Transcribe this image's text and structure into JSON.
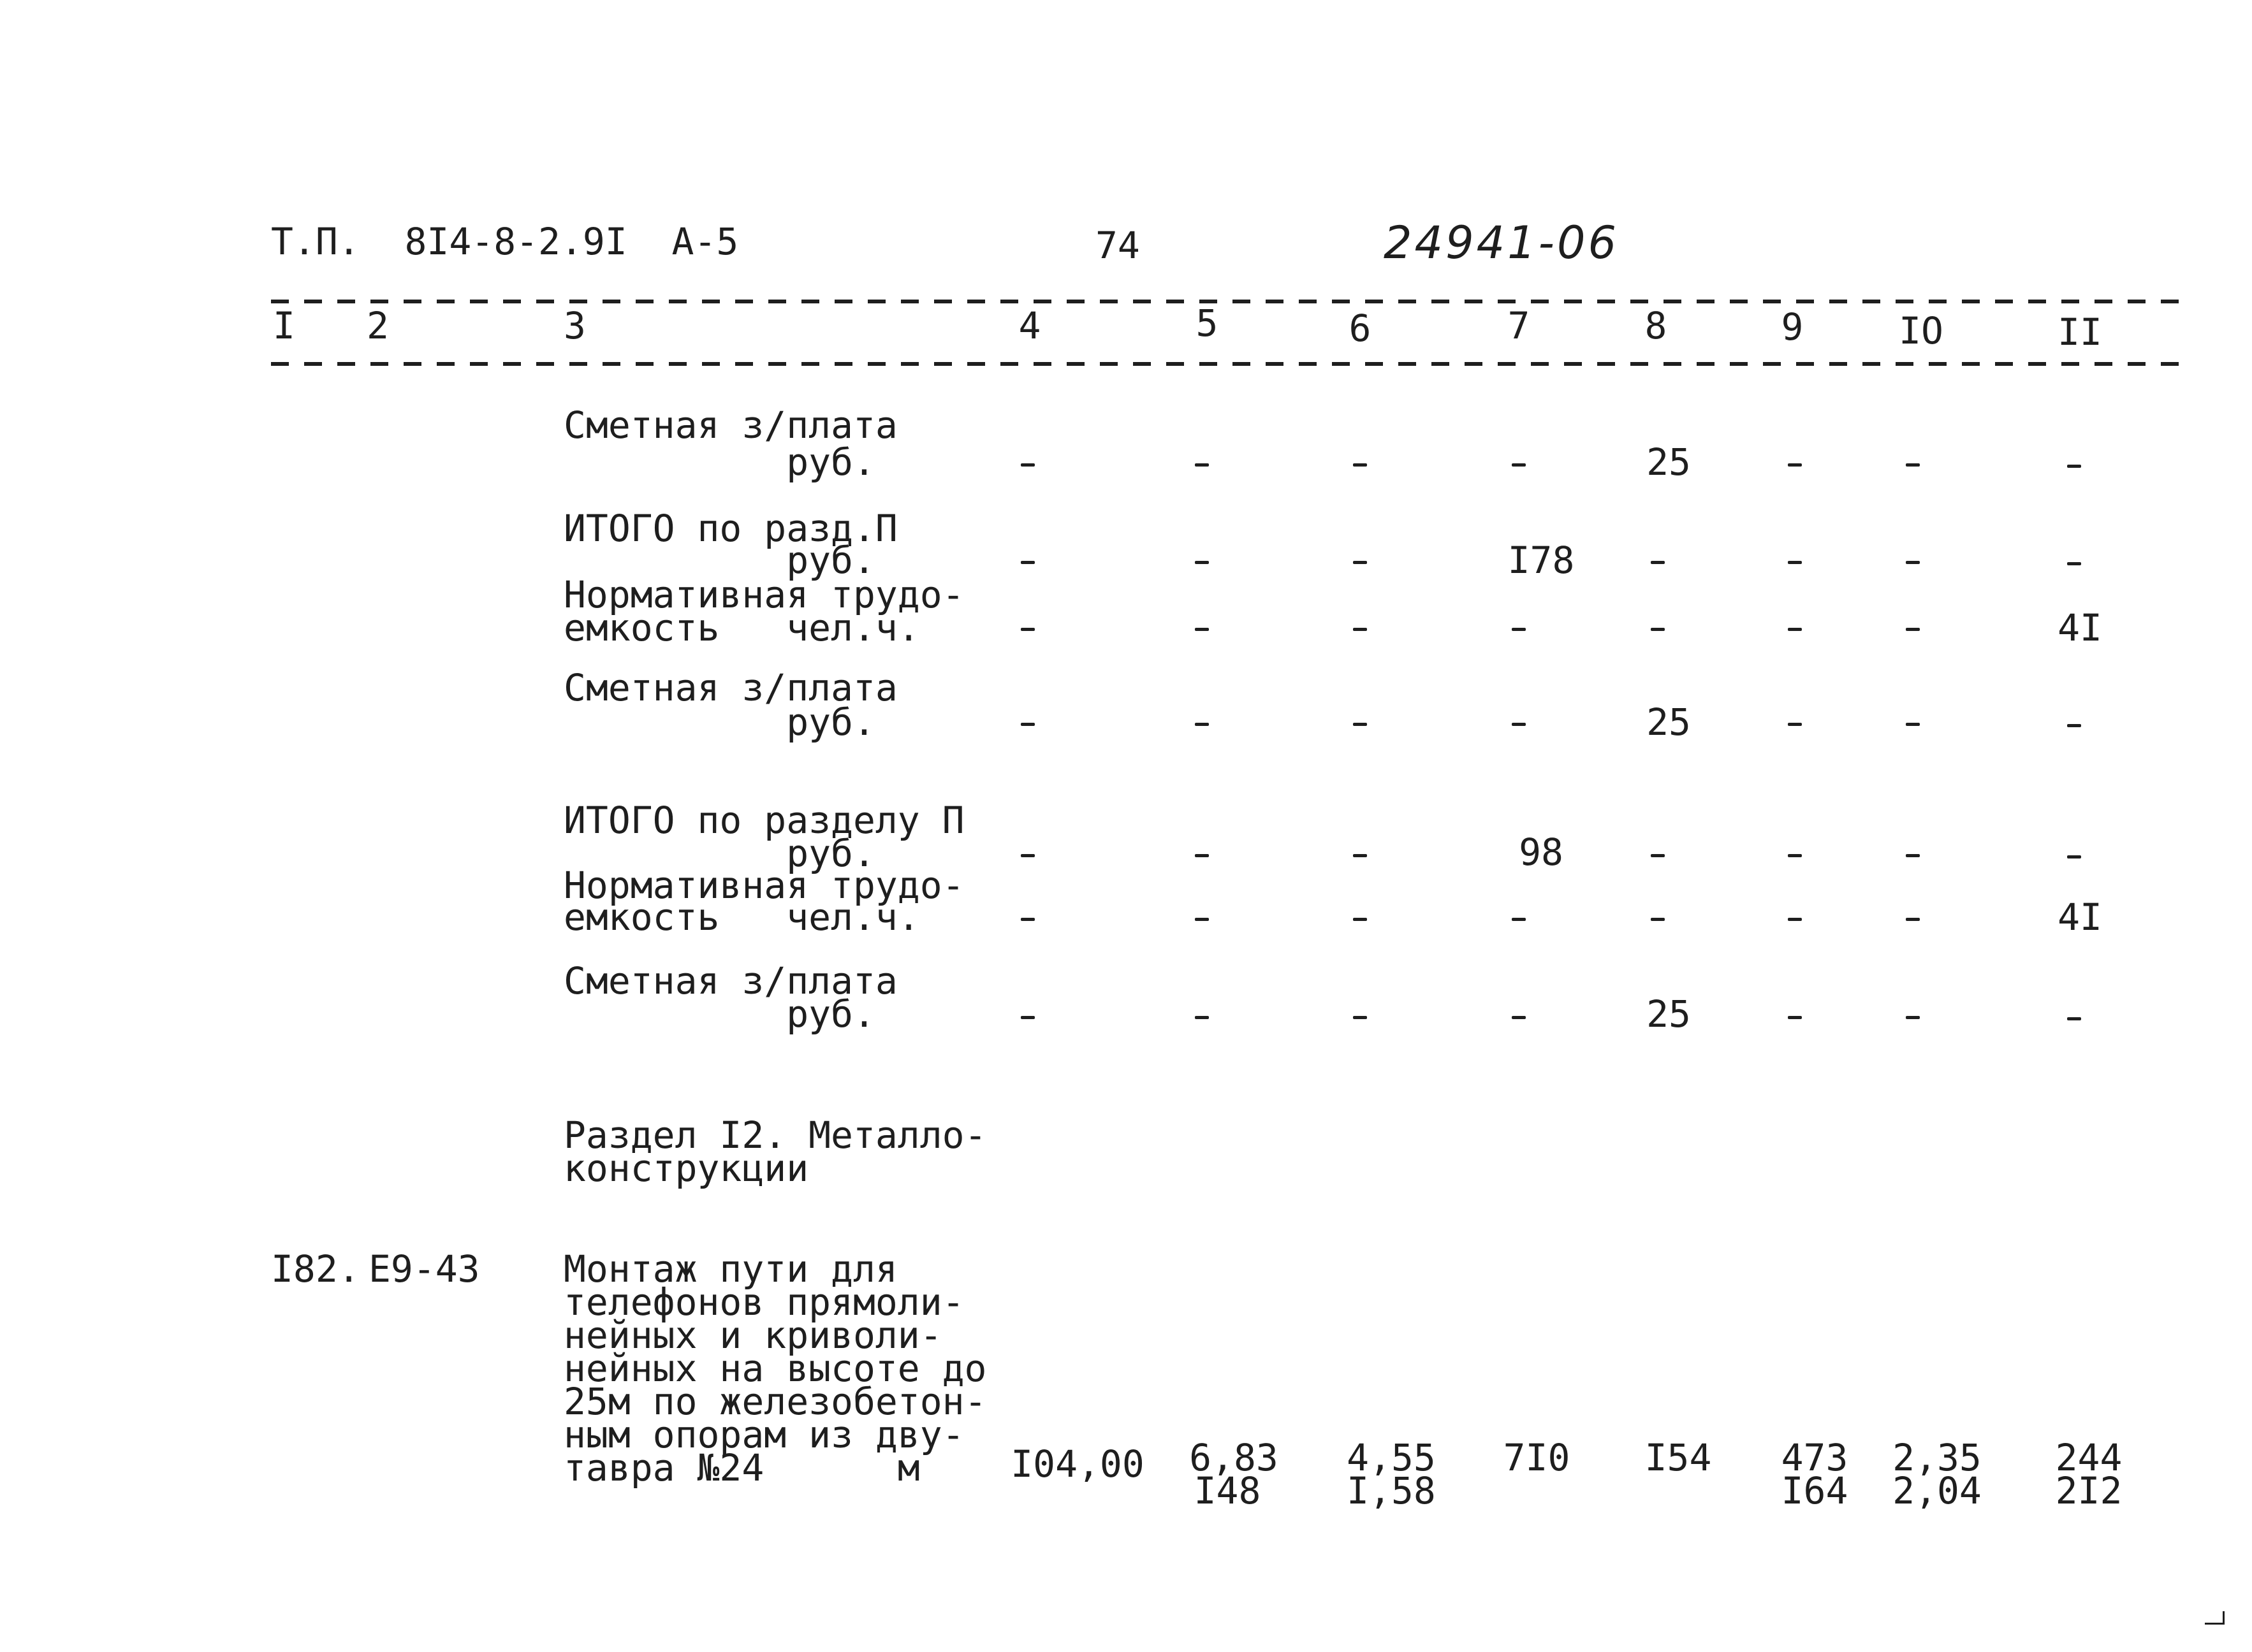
{
  "header": {
    "doc_code": "Т.П.  8I4-8-2.9I  А-5",
    "page_number": "74",
    "archive_number": "24941-06"
  },
  "column_numbers": [
    "I",
    "2",
    "3",
    "4",
    "5",
    "6",
    "7",
    "8",
    "9",
    "IO",
    "II"
  ],
  "rows": [
    {
      "label_lines": [
        "Сметная з/плата",
        "          руб."
      ],
      "values": {
        "4": "-",
        "5": "-",
        "6": "-",
        "7": "-",
        "8": "25",
        "9": "-",
        "10": "-",
        "11": "-"
      }
    },
    {
      "label_lines": [
        "ИТОГО по разд.П",
        "          руб."
      ],
      "values": {
        "4": "-",
        "5": "-",
        "6": "-",
        "7": "I78",
        "8": "-",
        "9": "-",
        "10": "-",
        "11": "-"
      }
    },
    {
      "label_lines": [
        "Нормативная трудо-",
        "емкость   чел.ч."
      ],
      "values": {
        "4": "-",
        "5": "-",
        "6": "-",
        "7": "-",
        "8": "-",
        "9": "-",
        "10": "-",
        "11": "4I"
      }
    },
    {
      "label_lines": [
        "Сметная з/плата",
        "          руб."
      ],
      "values": {
        "4": "-",
        "5": "-",
        "6": "-",
        "7": "-",
        "8": "25",
        "9": "-",
        "10": "-",
        "11": "-"
      }
    },
    {
      "label_lines": [
        "ИТОГО по разделу П",
        "          руб."
      ],
      "values": {
        "4": "-",
        "5": "-",
        "6": "-",
        "7": "98",
        "8": "-",
        "9": "-",
        "10": "-",
        "11": "-"
      }
    },
    {
      "label_lines": [
        "Нормативная трудо-",
        "емкость   чел.ч."
      ],
      "values": {
        "4": "-",
        "5": "-",
        "6": "-",
        "7": "-",
        "8": "-",
        "9": "-",
        "10": "-",
        "11": "4I"
      }
    },
    {
      "label_lines": [
        "Сметная з/плата",
        "          руб."
      ],
      "values": {
        "4": "-",
        "5": "-",
        "6": "-",
        "7": "-",
        "8": "25",
        "9": "-",
        "10": "-",
        "11": "-"
      }
    }
  ],
  "section": {
    "title_lines": [
      "Раздел I2. Металло-",
      "конструкции"
    ]
  },
  "item": {
    "position": "I82.",
    "code": "Е9-43",
    "description_lines": [
      "Монтаж пути для",
      "телефонов прямоли-",
      "нейных и криволи-",
      "нейных на высоте до",
      "25м по железобетон-",
      "ным опорам из дву-",
      "тавра №24      м"
    ],
    "values": {
      "4": "I04,00",
      "5": [
        "6,83",
        "I48"
      ],
      "6": [
        "4,55",
        "I,58"
      ],
      "7": "7I0",
      "8": "I54",
      "9": [
        "473",
        "I64"
      ],
      "10": [
        "2,35",
        "2,04"
      ],
      "11": [
        "244",
        "2I2"
      ]
    }
  }
}
